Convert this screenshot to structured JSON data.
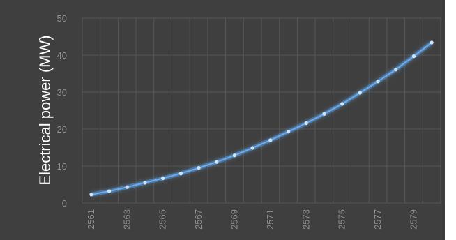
{
  "chart_data": {
    "type": "line",
    "title": "",
    "xlabel": "",
    "ylabel": "Electrical power (MW)",
    "x": [
      2561,
      2562,
      2563,
      2564,
      2565,
      2566,
      2567,
      2568,
      2569,
      2570,
      2571,
      2572,
      2573,
      2574,
      2575,
      2576,
      2577,
      2578,
      2579,
      2580
    ],
    "series": [
      {
        "name": "",
        "values": [
          2.3,
          3.2,
          4.3,
          5.5,
          6.7,
          8.0,
          9.5,
          11.1,
          12.9,
          14.9,
          17.0,
          19.3,
          21.6,
          24.1,
          26.8,
          29.8,
          32.9,
          36.1,
          39.7,
          43.4
        ]
      }
    ],
    "x_tick_labels": [
      "2561",
      "2563",
      "2565",
      "2567",
      "2569",
      "2571",
      "2573",
      "2575",
      "2577",
      "2579"
    ],
    "y_tick_labels": [
      "0",
      "10",
      "20",
      "30",
      "40",
      "50"
    ],
    "xlim": [
      2560.5,
      2580.5
    ],
    "ylim": [
      0,
      50
    ],
    "grid": true,
    "legend": "none",
    "colors": {
      "background": "#3f3f3f",
      "grid": "#555555",
      "line": "#6aa8ef",
      "glow": "#5b9bd5",
      "tick_text": "#8e8e8e",
      "axis_title": "#ffffff"
    }
  }
}
